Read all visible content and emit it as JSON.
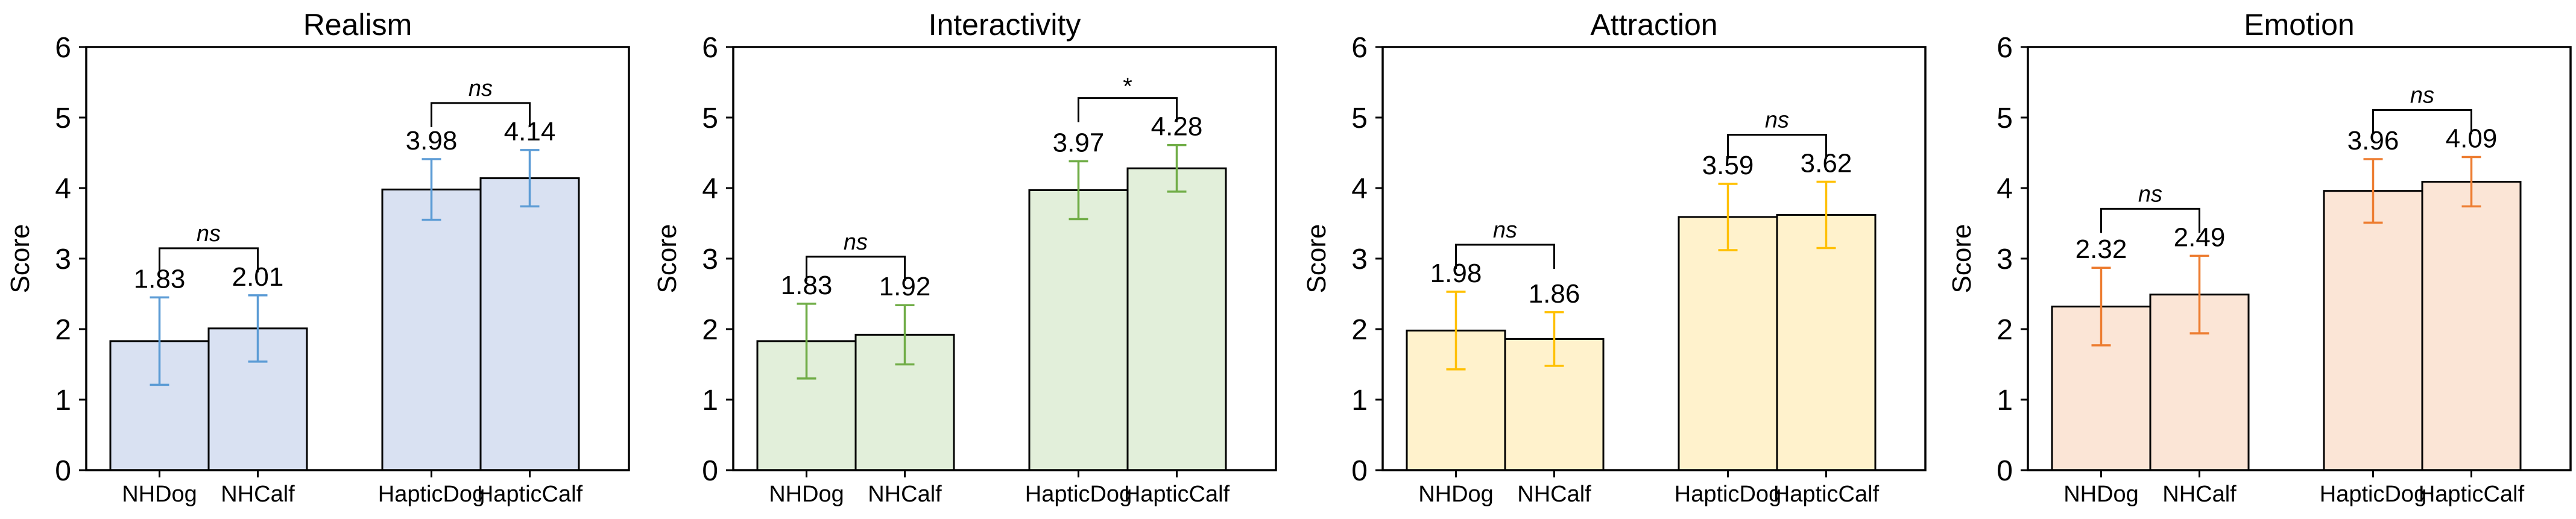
{
  "chart_data": [
    {
      "type": "bar",
      "title": "Realism",
      "xlabel": "",
      "ylabel": "Score",
      "ylim": [
        0,
        6
      ],
      "yticks": [
        0,
        1,
        2,
        3,
        4,
        5,
        6
      ],
      "categories": [
        "NHDog",
        "NHCalf",
        "HapticDog",
        "HapticCalf"
      ],
      "values": [
        1.83,
        2.01,
        3.98,
        4.14
      ],
      "errors": [
        0.62,
        0.47,
        0.43,
        0.4
      ],
      "colors": {
        "fill": "#d9e1f2",
        "error": "#5b9bd5"
      },
      "significance": [
        {
          "from": 0,
          "to": 1,
          "label": "ns"
        },
        {
          "from": 2,
          "to": 3,
          "label": "ns"
        }
      ]
    },
    {
      "type": "bar",
      "title": "Interactivity",
      "xlabel": "",
      "ylabel": "Score",
      "ylim": [
        0,
        6
      ],
      "yticks": [
        0,
        1,
        2,
        3,
        4,
        5,
        6
      ],
      "categories": [
        "NHDog",
        "NHCalf",
        "HapticDog",
        "HapticCalf"
      ],
      "values": [
        1.83,
        1.92,
        3.97,
        4.28
      ],
      "errors": [
        0.53,
        0.42,
        0.41,
        0.33
      ],
      "colors": {
        "fill": "#e2efda",
        "error": "#70ad47"
      },
      "significance": [
        {
          "from": 0,
          "to": 1,
          "label": "ns"
        },
        {
          "from": 2,
          "to": 3,
          "label": "*"
        }
      ]
    },
    {
      "type": "bar",
      "title": "Attraction",
      "xlabel": "",
      "ylabel": "Score",
      "ylim": [
        0,
        6
      ],
      "yticks": [
        0,
        1,
        2,
        3,
        4,
        5,
        6
      ],
      "categories": [
        "NHDog",
        "NHCalf",
        "HapticDog",
        "HapticCalf"
      ],
      "values": [
        1.98,
        1.86,
        3.59,
        3.62
      ],
      "errors": [
        0.55,
        0.38,
        0.47,
        0.47
      ],
      "colors": {
        "fill": "#fff2cc",
        "error": "#ffc000"
      },
      "significance": [
        {
          "from": 0,
          "to": 1,
          "label": "ns"
        },
        {
          "from": 2,
          "to": 3,
          "label": "ns"
        }
      ]
    },
    {
      "type": "bar",
      "title": "Emotion",
      "xlabel": "",
      "ylabel": "Score",
      "ylim": [
        0,
        6
      ],
      "yticks": [
        0,
        1,
        2,
        3,
        4,
        5,
        6
      ],
      "categories": [
        "NHDog",
        "NHCalf",
        "HapticDog",
        "HapticCalf"
      ],
      "values": [
        2.32,
        2.49,
        3.96,
        4.09
      ],
      "errors": [
        0.55,
        0.55,
        0.45,
        0.35
      ],
      "colors": {
        "fill": "#fbe5d6",
        "error": "#ed7d31"
      },
      "significance": [
        {
          "from": 0,
          "to": 1,
          "label": "ns"
        },
        {
          "from": 2,
          "to": 3,
          "label": "ns"
        }
      ]
    }
  ]
}
